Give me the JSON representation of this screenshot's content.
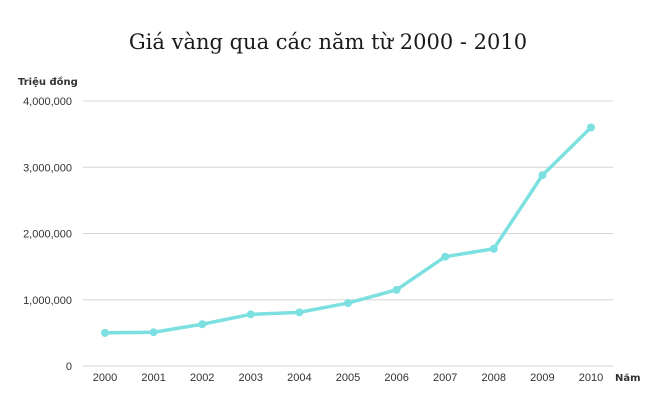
{
  "chart_data": {
    "type": "line",
    "title": "Giá vàng qua các năm từ 2000 - 2010",
    "ylabel": "Triệu đồng",
    "xlabel": "Năm",
    "x": [
      "2000",
      "2001",
      "2002",
      "2003",
      "2004",
      "2005",
      "2006",
      "2007",
      "2008",
      "2009",
      "2010"
    ],
    "series": [
      {
        "values": [
          500000,
          510000,
          630000,
          780000,
          810000,
          950000,
          1150000,
          1650000,
          1770000,
          2880000,
          3600000
        ]
      }
    ],
    "yticks": [
      "0",
      "1,000,000",
      "2,000,000",
      "3,000,000",
      "4,000,000"
    ],
    "ylim": [
      0,
      4000000
    ],
    "grid": true,
    "legend": "none",
    "line_color": "#7de0e0"
  }
}
